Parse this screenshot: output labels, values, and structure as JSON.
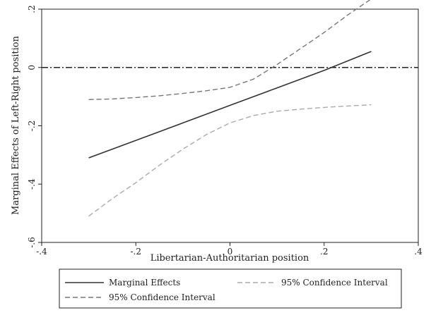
{
  "chart_data": {
    "type": "line",
    "title": "",
    "xlabel": "Libertarian-Authoritarian position",
    "ylabel": "Marginal Effects of Left-Right position",
    "xlim": [
      -0.4,
      0.4
    ],
    "ylim": [
      -0.6,
      0.2
    ],
    "xticks": [
      -0.4,
      -0.2,
      0,
      0.2,
      0.4
    ],
    "xtick_labels": [
      "-.4",
      "-.2",
      "0",
      ".2",
      ".4"
    ],
    "yticks": [
      -0.6,
      -0.4,
      -0.2,
      0,
      0.2
    ],
    "ytick_labels": [
      "-.6",
      "-.4",
      "-.2",
      "0",
      ".2"
    ],
    "grid": false,
    "reference_line": {
      "y": 0,
      "style": "dash-dot"
    },
    "legend_position": "bottom",
    "series": [
      {
        "name": "Marginal Effects",
        "style": "solid",
        "color": "#333333",
        "x": [
          -0.3,
          -0.2,
          -0.1,
          0.0,
          0.1,
          0.2,
          0.3
        ],
        "y": [
          -0.31,
          -0.25,
          -0.19,
          -0.13,
          -0.07,
          -0.01,
          0.055
        ]
      },
      {
        "name": "95% Confidence Interval",
        "style": "dashed-light",
        "color": "#aaaaaa",
        "x": [
          -0.3,
          -0.25,
          -0.2,
          -0.15,
          -0.1,
          -0.05,
          0.0,
          0.05,
          0.1,
          0.15,
          0.2,
          0.25,
          0.3
        ],
        "y": [
          -0.51,
          -0.45,
          -0.395,
          -0.335,
          -0.28,
          -0.23,
          -0.19,
          -0.165,
          -0.15,
          -0.143,
          -0.137,
          -0.132,
          -0.128
        ]
      },
      {
        "name": "95% Confidence Interval",
        "style": "dashed-dark",
        "color": "#777777",
        "x": [
          -0.3,
          -0.25,
          -0.2,
          -0.15,
          -0.1,
          -0.05,
          0.0,
          0.05,
          0.1,
          0.15,
          0.2,
          0.25,
          0.3
        ],
        "y": [
          -0.11,
          -0.108,
          -0.103,
          -0.097,
          -0.089,
          -0.08,
          -0.068,
          -0.04,
          0.01,
          0.065,
          0.12,
          0.18,
          0.235
        ]
      }
    ]
  }
}
